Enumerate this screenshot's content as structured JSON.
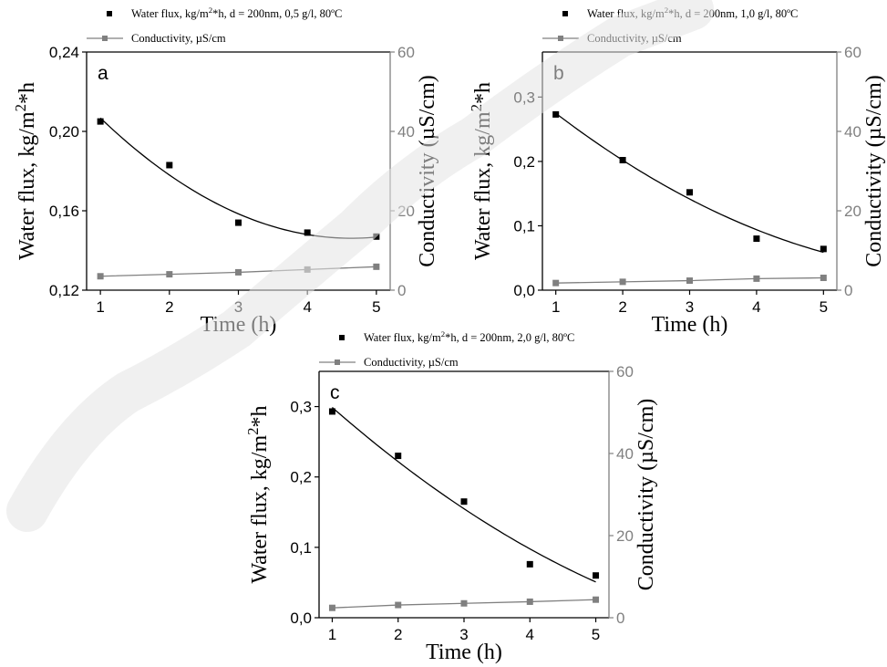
{
  "colors": {
    "flux": "#000000",
    "conductivity": "#808080",
    "right_axis": "#808080",
    "watermark": "#dedede"
  },
  "chart_data": [
    {
      "type": "scatter",
      "panel_label": "a",
      "xlabel": "Time (h)",
      "ylabel": "Water flux, kg/m^2*h",
      "y2label": "Conductivity (µS/cm)",
      "x_ticks": [
        "1",
        "2",
        "3",
        "4",
        "5"
      ],
      "y_ticks": [
        "0,12",
        "0,16",
        "0,20",
        "0,24"
      ],
      "y2_ticks": [
        "0",
        "20",
        "40",
        "60"
      ],
      "xlim": [
        0.8,
        5.2
      ],
      "ylim": [
        0.12,
        0.24
      ],
      "y2lim": [
        0,
        60
      ],
      "grid": false,
      "legend_position": "above",
      "series": [
        {
          "name": "Water flux, kg/m^2*h, d = 200nm, 0,5 g/l, 80ºC",
          "axis": "left",
          "marker": "square",
          "x": [
            1,
            2,
            3,
            4,
            5
          ],
          "y": [
            0.205,
            0.183,
            0.154,
            0.149,
            0.147
          ],
          "fit": "polynomial"
        },
        {
          "name": "Conductivity, µS/cm",
          "axis": "right",
          "marker": "square-line",
          "x": [
            1,
            2,
            3,
            4,
            5
          ],
          "y": [
            3.5,
            4.0,
            4.5,
            5.2,
            5.9
          ]
        }
      ]
    },
    {
      "type": "scatter",
      "panel_label": "b",
      "xlabel": "Time (h)",
      "ylabel": "Water flux, kg/m^2*h",
      "y2label": "Conductivity (µS/cm)",
      "x_ticks": [
        "1",
        "2",
        "3",
        "4",
        "5"
      ],
      "y_ticks": [
        "0,0",
        "0,1",
        "0,2",
        "0,3"
      ],
      "y2_ticks": [
        "0",
        "20",
        "40",
        "60"
      ],
      "xlim": [
        0.8,
        5.2
      ],
      "ylim": [
        0,
        0.37
      ],
      "y2lim": [
        0,
        60
      ],
      "grid": false,
      "legend_position": "above",
      "series": [
        {
          "name": "Water flux, kg/m^2*h, d = 200nm, 1,0 g/l, 80ºC",
          "axis": "left",
          "marker": "square",
          "x": [
            1,
            2,
            3,
            4,
            5
          ],
          "y": [
            0.273,
            0.202,
            0.152,
            0.08,
            0.064
          ],
          "fit": "polynomial"
        },
        {
          "name": "Conductivity, µS/cm",
          "axis": "right",
          "marker": "square-line",
          "x": [
            1,
            2,
            3,
            4,
            5
          ],
          "y": [
            1.8,
            2.1,
            2.4,
            2.9,
            3.1
          ]
        }
      ]
    },
    {
      "type": "scatter",
      "panel_label": "c",
      "xlabel": "Time (h)",
      "ylabel": "Water flux, kg/m^2*h",
      "y2label": "Conductivity (µS/cm)",
      "x_ticks": [
        "1",
        "2",
        "3",
        "4",
        "5"
      ],
      "y_ticks": [
        "0,0",
        "0,1",
        "0,2",
        "0,3"
      ],
      "y2_ticks": [
        "0",
        "20",
        "40",
        "60"
      ],
      "xlim": [
        0.8,
        5.2
      ],
      "ylim": [
        0,
        0.35
      ],
      "y2lim": [
        0,
        60
      ],
      "grid": false,
      "legend_position": "above",
      "series": [
        {
          "name": "Water flux, kg/m^2*h, d = 200nm, 2,0 g/l, 80ºC",
          "axis": "left",
          "marker": "square",
          "x": [
            1,
            2,
            3,
            4,
            5
          ],
          "y": [
            0.293,
            0.23,
            0.165,
            0.076,
            0.06
          ],
          "fit": "polynomial"
        },
        {
          "name": "Conductivity, µS/cm",
          "axis": "right",
          "marker": "square-line",
          "x": [
            1,
            2,
            3,
            4,
            5
          ],
          "y": [
            2.4,
            3.1,
            3.5,
            3.9,
            4.4
          ]
        }
      ]
    }
  ]
}
